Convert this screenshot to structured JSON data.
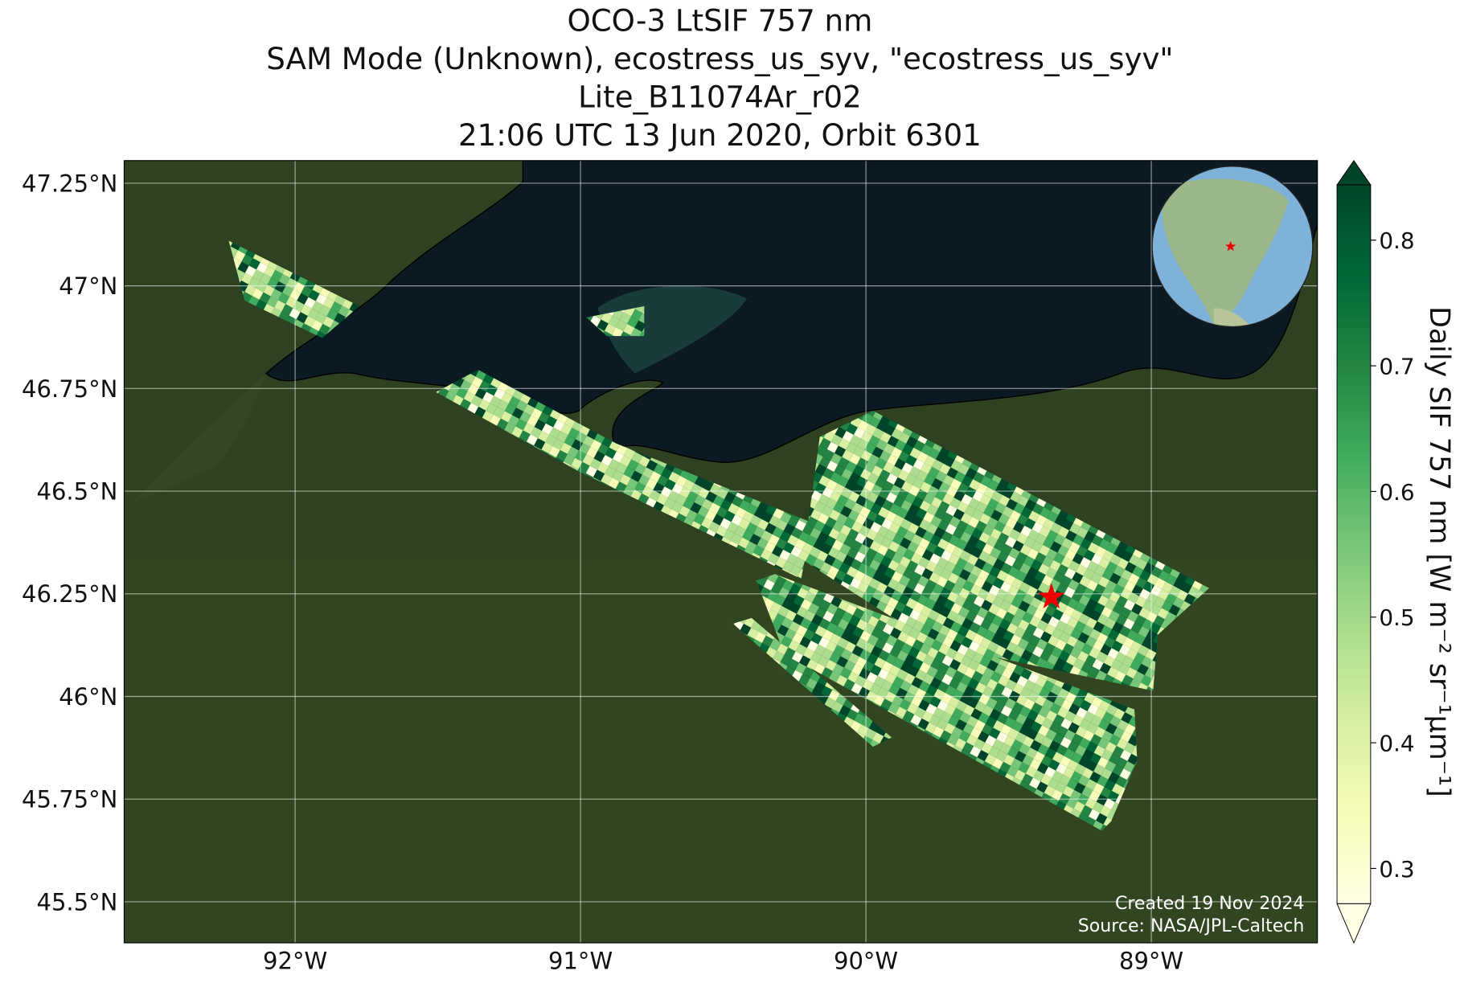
{
  "chart_data": {
    "type": "map",
    "title": [
      "OCO-3 LtSIF 757 nm",
      "SAM Mode (Unknown), ecostress_us_syv, \"ecostress_us_syv\"",
      "Lite_B11074Ar_r02",
      "21:06 UTC 13 Jun 2020, Orbit 6301"
    ],
    "xlim": [
      -92.599,
      -88.418
    ],
    "ylim": [
      45.4,
      47.305
    ],
    "xticks": [
      {
        "value": -92,
        "label": "92°W"
      },
      {
        "value": -91,
        "label": "91°W"
      },
      {
        "value": -90,
        "label": "90°W"
      },
      {
        "value": -89,
        "label": "89°W"
      }
    ],
    "yticks": [
      {
        "value": 45.5,
        "label": "45.5°N"
      },
      {
        "value": 45.75,
        "label": "45.75°N"
      },
      {
        "value": 46,
        "label": "46°N"
      },
      {
        "value": 46.25,
        "label": "46.25°N"
      },
      {
        "value": 46.5,
        "label": "46.5°N"
      },
      {
        "value": 46.75,
        "label": "46.75°N"
      },
      {
        "value": 47,
        "label": "47°N"
      },
      {
        "value": 47.25,
        "label": "47.25°N"
      }
    ],
    "grid": true,
    "site": {
      "lon": -89.35,
      "lat": 46.242
    },
    "colorbar": {
      "label": "Daily SIF 757 nm [W m⁻² sr⁻¹μm⁻¹]",
      "clim": [
        0.272,
        0.844
      ],
      "ticks": [
        0.3,
        0.4,
        0.5,
        0.6,
        0.7,
        0.8
      ],
      "colormap": [
        "#ffffe5",
        "#f7fcb9",
        "#d9f0a3",
        "#addd8e",
        "#78c679",
        "#41ab5d",
        "#238443",
        "#006837",
        "#004529"
      ]
    },
    "credits": [
      "Created 19 Nov 2024",
      "Source: NASA/JPL-Caltech"
    ]
  }
}
